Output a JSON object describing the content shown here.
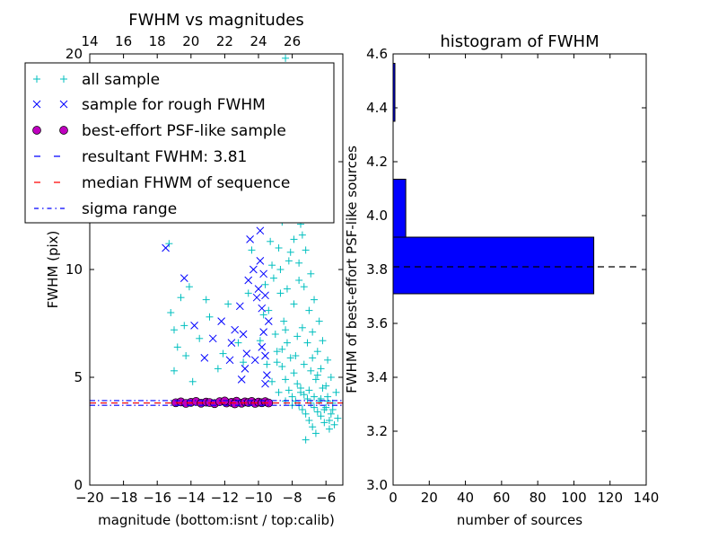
{
  "chart_data": [
    {
      "type": "scatter",
      "title": "FWHM vs magnitudes",
      "xlabel": "magnitude (bottom:isnt / top:calib)",
      "ylabel": "FWHM (pix)",
      "xlim": [
        -20,
        -5
      ],
      "ylim": [
        0,
        20
      ],
      "top_axis": {
        "ticks": [
          14,
          16,
          18,
          20,
          22,
          24,
          26
        ],
        "offset": 34
      },
      "x_ticks": [
        -20,
        -18,
        -16,
        -14,
        -12,
        -10,
        -8,
        -6
      ],
      "y_ticks": [
        0,
        5,
        10,
        15,
        20
      ],
      "x_tick_labels": [
        "−20",
        "−18",
        "−16",
        "−14",
        "−12",
        "−10",
        "−8",
        "−6"
      ],
      "y_tick_labels": [
        "0",
        "5",
        "10",
        "15",
        "20"
      ],
      "top_tick_labels": [
        "14",
        "16",
        "18",
        "20",
        "22",
        "24",
        "26"
      ],
      "legend": {
        "placement": "upper-left",
        "entries": [
          {
            "label": "all sample",
            "marker": "plus",
            "color": "#00bfbf"
          },
          {
            "label": "sample for rough FWHM",
            "marker": "x",
            "color": "#0000ff"
          },
          {
            "label": "best-effort PSF-like sample",
            "marker": "circle",
            "color": "#bf00bf"
          },
          {
            "label": "resultant FWHM: 3.81",
            "marker": "dash",
            "color": "#0000ff"
          },
          {
            "label": "median FHWM of sequence",
            "marker": "dash",
            "color": "#ff0000"
          },
          {
            "label": "sigma range",
            "marker": "dashdot",
            "color": "#0000ff"
          }
        ]
      },
      "series": [
        {
          "name": "all sample",
          "color": "#00bfbf",
          "points": [
            [
              -15.3,
              11.2
            ],
            [
              -14.6,
              8.7
            ],
            [
              -15.0,
              7.2
            ],
            [
              -14.8,
              6.4
            ],
            [
              -14.4,
              7.4
            ],
            [
              -14.3,
              6.0
            ],
            [
              -13.9,
              4.8
            ],
            [
              -13.5,
              6.8
            ],
            [
              -13.1,
              8.6
            ],
            [
              -12.9,
              7.8
            ],
            [
              -12.1,
              6.1
            ],
            [
              -11.8,
              8.4
            ],
            [
              -15.0,
              5.3
            ],
            [
              -15.2,
              8.0
            ],
            [
              -14.1,
              9.2
            ],
            [
              -12.4,
              5.4
            ],
            [
              -11.2,
              6.6
            ],
            [
              -10.9,
              5.7
            ],
            [
              -10.6,
              8.9
            ],
            [
              -10.4,
              10.9
            ],
            [
              -10.2,
              12.5
            ],
            [
              -10.0,
              14.0
            ],
            [
              -9.8,
              16.3
            ],
            [
              -9.5,
              18.2
            ],
            [
              -9.2,
              15.0
            ],
            [
              -8.8,
              17.6
            ],
            [
              -8.4,
              19.8
            ],
            [
              -7.6,
              19.1
            ],
            [
              -6.2,
              19.4
            ],
            [
              -7.0,
              18.0
            ],
            [
              -6.6,
              16.2
            ],
            [
              -7.9,
              15.3
            ],
            [
              -9.0,
              13.6
            ],
            [
              -8.6,
              12.2
            ],
            [
              -9.3,
              11.3
            ],
            [
              -8.2,
              10.4
            ],
            [
              -9.1,
              9.6
            ],
            [
              -8.7,
              8.9
            ],
            [
              -9.4,
              8.1
            ],
            [
              -8.5,
              7.6
            ],
            [
              -9.0,
              7.0
            ],
            [
              -8.3,
              6.6
            ],
            [
              -8.9,
              6.2
            ],
            [
              -8.1,
              5.9
            ],
            [
              -8.6,
              5.5
            ],
            [
              -7.9,
              5.2
            ],
            [
              -8.4,
              4.9
            ],
            [
              -7.7,
              4.7
            ],
            [
              -8.2,
              4.4
            ],
            [
              -7.5,
              4.3
            ],
            [
              -8.0,
              4.1
            ],
            [
              -7.3,
              4.2
            ],
            [
              -7.8,
              3.9
            ],
            [
              -7.1,
              4.0
            ],
            [
              -7.6,
              3.7
            ],
            [
              -6.9,
              3.8
            ],
            [
              -7.4,
              3.5
            ],
            [
              -6.7,
              3.6
            ],
            [
              -7.2,
              3.3
            ],
            [
              -6.5,
              3.4
            ],
            [
              -7.0,
              3.0
            ],
            [
              -6.3,
              3.2
            ],
            [
              -6.8,
              2.7
            ],
            [
              -6.1,
              2.9
            ],
            [
              -6.6,
              2.4
            ],
            [
              -7.2,
              2.1
            ],
            [
              -5.8,
              2.6
            ],
            [
              -5.5,
              2.8
            ],
            [
              -5.3,
              3.1
            ],
            [
              -5.6,
              3.5
            ],
            [
              -5.9,
              3.9
            ],
            [
              -5.4,
              4.3
            ],
            [
              -6.0,
              4.6
            ],
            [
              -5.7,
              5.0
            ],
            [
              -6.3,
              5.4
            ],
            [
              -5.9,
              5.8
            ],
            [
              -6.5,
              6.2
            ],
            [
              -6.2,
              6.7
            ],
            [
              -6.8,
              7.1
            ],
            [
              -6.4,
              7.6
            ],
            [
              -7.0,
              8.1
            ],
            [
              -6.7,
              8.6
            ],
            [
              -7.3,
              9.2
            ],
            [
              -6.9,
              9.8
            ],
            [
              -7.6,
              10.3
            ],
            [
              -7.2,
              10.9
            ],
            [
              -7.9,
              11.4
            ],
            [
              -7.5,
              12.1
            ],
            [
              -8.1,
              12.8
            ],
            [
              -7.8,
              13.5
            ],
            [
              -8.5,
              14.3
            ],
            [
              -8.0,
              15.8
            ],
            [
              -8.8,
              11.0
            ],
            [
              -9.2,
              10.2
            ],
            [
              -9.6,
              9.3
            ],
            [
              -9.7,
              7.9
            ],
            [
              -9.9,
              6.7
            ],
            [
              -9.5,
              5.6
            ],
            [
              -9.2,
              4.8
            ],
            [
              -8.8,
              4.3
            ],
            [
              -8.4,
              3.9
            ],
            [
              -8.0,
              3.7
            ],
            [
              -7.7,
              6.9
            ],
            [
              -7.4,
              7.3
            ],
            [
              -7.1,
              6.6
            ],
            [
              -6.8,
              5.9
            ],
            [
              -6.5,
              5.1
            ],
            [
              -6.2,
              4.5
            ],
            [
              -5.9,
              4.1
            ],
            [
              -5.6,
              3.8
            ],
            [
              -7.9,
              8.4
            ],
            [
              -8.3,
              9.1
            ],
            [
              -7.6,
              9.5
            ],
            [
              -8.7,
              10.0
            ],
            [
              -8.1,
              10.8
            ],
            [
              -7.4,
              11.6
            ],
            [
              -8.4,
              7.2
            ],
            [
              -7.8,
              6.0
            ],
            [
              -7.3,
              5.6
            ],
            [
              -6.9,
              5.3
            ],
            [
              -6.6,
              4.9
            ],
            [
              -6.3,
              4.0
            ],
            [
              -6.0,
              3.6
            ],
            [
              -5.7,
              3.3
            ],
            [
              -8.6,
              6.3
            ],
            [
              -8.9,
              5.7
            ],
            [
              -7.5,
              4.5
            ],
            [
              -7.0,
              4.4
            ],
            [
              -6.7,
              4.1
            ],
            [
              -6.4,
              3.9
            ],
            [
              -6.1,
              3.5
            ],
            [
              -5.8,
              3.0
            ]
          ]
        },
        {
          "name": "sample for rough FWHM",
          "color": "#0000ff",
          "points": [
            [
              -15.5,
              11.0
            ],
            [
              -14.9,
              12.5
            ],
            [
              -14.4,
              9.6
            ],
            [
              -13.8,
              7.4
            ],
            [
              -13.2,
              5.9
            ],
            [
              -12.7,
              6.8
            ],
            [
              -12.2,
              7.6
            ],
            [
              -11.7,
              5.8
            ],
            [
              -11.4,
              7.2
            ],
            [
              -11.1,
              8.3
            ],
            [
              -10.9,
              7.0
            ],
            [
              -10.7,
              6.1
            ],
            [
              -10.6,
              9.5
            ],
            [
              -10.5,
              11.4
            ],
            [
              -10.4,
              12.9
            ],
            [
              -10.3,
              13.8
            ],
            [
              -10.2,
              15.6
            ],
            [
              -10.1,
              17.2
            ],
            [
              -10.0,
              9.1
            ],
            [
              -9.9,
              10.4
            ],
            [
              -9.8,
              8.2
            ],
            [
              -9.7,
              7.1
            ],
            [
              -9.6,
              6.0
            ],
            [
              -9.5,
              5.1
            ],
            [
              -10.3,
              10.0
            ],
            [
              -10.1,
              8.7
            ],
            [
              -9.9,
              11.8
            ],
            [
              -9.7,
              9.8
            ],
            [
              -9.6,
              8.8
            ],
            [
              -9.4,
              7.6
            ],
            [
              -10.8,
              5.4
            ],
            [
              -11.0,
              4.9
            ],
            [
              -9.8,
              6.4
            ],
            [
              -9.6,
              4.7
            ],
            [
              -10.2,
              5.8
            ],
            [
              -11.6,
              6.6
            ]
          ]
        },
        {
          "name": "best-effort PSF-like sample",
          "color": "#bf00bf",
          "points": [
            [
              -14.9,
              3.82
            ],
            [
              -14.6,
              3.86
            ],
            [
              -14.3,
              3.79
            ],
            [
              -14.0,
              3.84
            ],
            [
              -13.7,
              3.88
            ],
            [
              -13.4,
              3.8
            ],
            [
              -13.1,
              3.85
            ],
            [
              -12.9,
              3.83
            ],
            [
              -12.6,
              3.78
            ],
            [
              -12.3,
              3.87
            ],
            [
              -11.9,
              3.81
            ],
            [
              -11.6,
              3.84
            ],
            [
              -11.3,
              3.89
            ],
            [
              -11.0,
              3.8
            ],
            [
              -10.8,
              3.86
            ],
            [
              -10.6,
              3.83
            ],
            [
              -10.4,
              3.88
            ],
            [
              -10.2,
              3.79
            ],
            [
              -10.0,
              3.85
            ],
            [
              -9.8,
              3.82
            ],
            [
              -9.6,
              3.87
            ],
            [
              -9.4,
              3.81
            ],
            [
              -12.0,
              3.9
            ],
            [
              -11.4,
              3.77
            ]
          ]
        }
      ],
      "hlines": [
        {
          "name": "resultant FWHM: 3.81",
          "y": 3.81,
          "color": "#0000ff",
          "style": "dashed"
        },
        {
          "name": "median FHWM of sequence",
          "y": 3.81,
          "color": "#ff0000",
          "style": "dashed"
        },
        {
          "name": "sigma range",
          "y": 3.92,
          "color": "#0000ff",
          "style": "dashdot"
        },
        {
          "name": "sigma range",
          "y": 3.7,
          "color": "#0000ff",
          "style": "dashdot"
        }
      ]
    },
    {
      "type": "bar",
      "orientation": "horizontal",
      "title": "histogram of FWHM",
      "xlabel": "number of sources",
      "ylabel": "FWHM of best-effort PSF-like sources",
      "xlim": [
        0,
        140
      ],
      "ylim": [
        3.0,
        4.6
      ],
      "x_ticks": [
        0,
        20,
        40,
        60,
        80,
        100,
        120,
        140
      ],
      "y_ticks": [
        3.0,
        3.2,
        3.4,
        3.6,
        3.8,
        4.0,
        4.2,
        4.4,
        4.6
      ],
      "x_tick_labels": [
        "0",
        "20",
        "40",
        "60",
        "80",
        "100",
        "120",
        "140"
      ],
      "y_tick_labels": [
        "3.0",
        "3.2",
        "3.4",
        "3.6",
        "3.8",
        "4.0",
        "4.2",
        "4.4",
        "4.6"
      ],
      "bar_color": "#0000ff",
      "bins": [
        {
          "low": 3.71,
          "high": 3.92,
          "count": 111
        },
        {
          "low": 3.92,
          "high": 4.135,
          "count": 7
        },
        {
          "low": 4.35,
          "high": 4.565,
          "count": 1
        }
      ],
      "hline": {
        "y": 3.81,
        "x_end": 135,
        "color": "#000000",
        "style": "dashed"
      }
    }
  ]
}
